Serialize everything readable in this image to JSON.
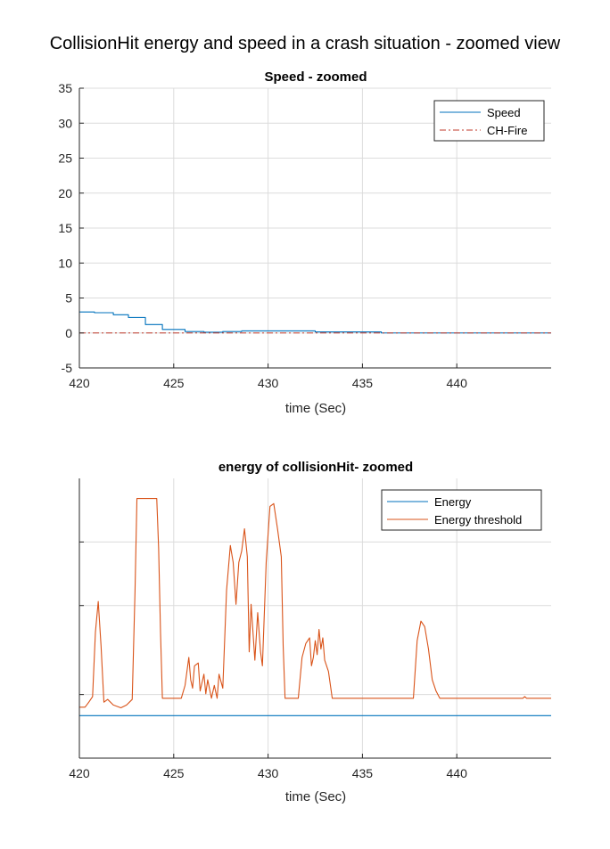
{
  "figure_title": "CollisionHit energy and speed in a crash situation - zoomed view",
  "chart_data": [
    {
      "type": "line",
      "title": "Speed - zoomed",
      "xlabel": "time (Sec)",
      "ylabel": "",
      "xlim": [
        420,
        445
      ],
      "ylim": [
        -5,
        35
      ],
      "xticks": [
        420,
        425,
        430,
        435,
        440
      ],
      "yticks": [
        -5,
        0,
        5,
        10,
        15,
        20,
        25,
        30,
        35
      ],
      "grid": true,
      "legend_position": "top-right",
      "series": [
        {
          "name": "Speed",
          "color": "#0072BD",
          "style": "solid",
          "x": [
            420.0,
            420.8,
            420.8,
            421.8,
            421.8,
            422.6,
            422.6,
            423.5,
            423.5,
            424.4,
            424.4,
            425.6,
            425.6,
            426.6,
            426.6,
            427.6,
            427.6,
            428.6,
            428.6,
            432.5,
            432.5,
            436.0,
            436.0,
            445.0
          ],
          "y": [
            3.0,
            3.0,
            2.9,
            2.9,
            2.6,
            2.6,
            2.2,
            2.2,
            1.2,
            1.2,
            0.5,
            0.5,
            0.2,
            0.2,
            0.1,
            0.1,
            0.2,
            0.2,
            0.3,
            0.3,
            0.15,
            0.15,
            0.0,
            0.0
          ]
        },
        {
          "name": "CH-Fire",
          "color": "#C0392B",
          "style": "dashdot",
          "x": [
            420.0,
            445.0
          ],
          "y": [
            0.0,
            0.0
          ]
        }
      ]
    },
    {
      "type": "line",
      "title": "energy of collisionHit- zoomed",
      "xlabel": "time (Sec)",
      "ylabel": "",
      "xlim": [
        420,
        445
      ],
      "ylim": [
        0,
        1
      ],
      "xticks": [
        420,
        425,
        430,
        435,
        440
      ],
      "yticks": [
        0.2273,
        0.5455,
        0.7727
      ],
      "ytick_labels_shown": false,
      "grid": true,
      "legend_position": "top-right",
      "series": [
        {
          "name": "Energy",
          "color": "#0072BD",
          "style": "solid",
          "x": [
            420.0,
            445.0
          ],
          "y": [
            0.152,
            0.152
          ]
        },
        {
          "name": "Energy threshold",
          "color": "#D95319",
          "style": "solid",
          "x": [
            420.0,
            420.3,
            420.5,
            420.7,
            420.85,
            421.0,
            421.15,
            421.3,
            421.5,
            421.8,
            422.2,
            422.5,
            422.8,
            422.95,
            423.05,
            424.1,
            424.2,
            424.3,
            424.4,
            425.4,
            425.6,
            425.8,
            425.9,
            426.0,
            426.1,
            426.3,
            426.4,
            426.6,
            426.7,
            426.8,
            427.0,
            427.15,
            427.3,
            427.4,
            427.6,
            427.8,
            428.0,
            428.15,
            428.3,
            428.45,
            428.6,
            428.75,
            428.9,
            429.0,
            429.1,
            429.3,
            429.45,
            429.6,
            429.7,
            429.9,
            430.1,
            430.3,
            430.5,
            430.7,
            430.8,
            430.9,
            431.0,
            431.6,
            431.8,
            432.0,
            432.2,
            432.3,
            432.4,
            432.5,
            432.6,
            432.7,
            432.8,
            432.9,
            433.0,
            433.2,
            433.4,
            437.7,
            437.9,
            438.1,
            438.3,
            438.5,
            438.7,
            438.9,
            439.1,
            439.3,
            443.5,
            443.6,
            443.7,
            445.0
          ],
          "y": [
            0.182,
            0.182,
            0.2,
            0.22,
            0.45,
            0.56,
            0.4,
            0.2,
            0.21,
            0.19,
            0.18,
            0.19,
            0.21,
            0.6,
            0.928,
            0.928,
            0.75,
            0.45,
            0.214,
            0.214,
            0.26,
            0.36,
            0.28,
            0.25,
            0.33,
            0.34,
            0.24,
            0.3,
            0.23,
            0.28,
            0.214,
            0.26,
            0.214,
            0.3,
            0.25,
            0.6,
            0.76,
            0.7,
            0.55,
            0.7,
            0.74,
            0.82,
            0.72,
            0.38,
            0.55,
            0.35,
            0.52,
            0.38,
            0.33,
            0.7,
            0.9,
            0.91,
            0.82,
            0.72,
            0.4,
            0.214,
            0.214,
            0.214,
            0.36,
            0.41,
            0.43,
            0.33,
            0.36,
            0.42,
            0.37,
            0.46,
            0.39,
            0.43,
            0.35,
            0.31,
            0.214,
            0.214,
            0.42,
            0.49,
            0.47,
            0.39,
            0.28,
            0.24,
            0.214,
            0.214,
            0.214,
            0.22,
            0.214,
            0.214
          ]
        }
      ]
    }
  ]
}
